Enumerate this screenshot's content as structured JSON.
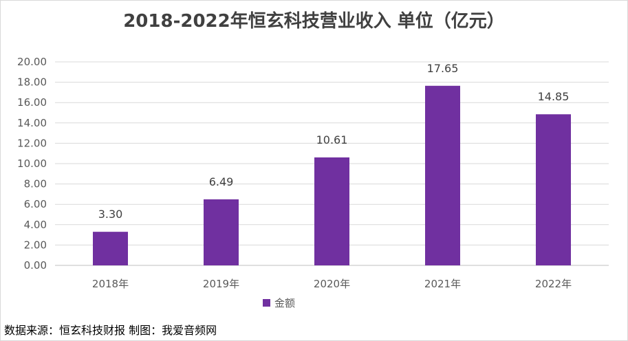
{
  "chart_data": {
    "type": "bar",
    "title": "2018-2022年恒玄科技营业收入 单位（亿元）",
    "categories": [
      "2018年",
      "2019年",
      "2020年",
      "2021年",
      "2022年"
    ],
    "series": [
      {
        "name": "金额",
        "values": [
          3.3,
          6.49,
          10.61,
          17.65,
          14.85
        ],
        "labels": [
          "3.30",
          "6.49",
          "10.61",
          "17.65",
          "14.85"
        ]
      }
    ],
    "ylim": [
      0,
      20
    ],
    "yticks": [
      "0.00",
      "2.00",
      "4.00",
      "6.00",
      "8.00",
      "10.00",
      "12.00",
      "14.00",
      "16.00",
      "18.00",
      "20.00"
    ],
    "xlabel": "",
    "ylabel": "",
    "grid": true,
    "legend": "bottom",
    "color": "#7030a0"
  },
  "footer": {
    "source": "数据来源：恒玄科技财报    制图：我爱音频网"
  }
}
